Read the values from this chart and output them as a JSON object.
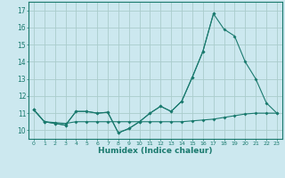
{
  "x": [
    0,
    1,
    2,
    3,
    4,
    5,
    6,
    7,
    8,
    9,
    10,
    11,
    12,
    13,
    14,
    15,
    16,
    17,
    18,
    19,
    20,
    21,
    22,
    23
  ],
  "line1_y": [
    11.2,
    10.5,
    10.4,
    10.3,
    11.1,
    11.1,
    11.0,
    11.05,
    9.85,
    10.1,
    10.5,
    11.0,
    11.4,
    11.1,
    11.7,
    13.1,
    14.6,
    16.8,
    null,
    null,
    null,
    null,
    null,
    null
  ],
  "line2_y": [
    11.2,
    10.5,
    10.4,
    10.3,
    11.1,
    11.1,
    11.0,
    11.05,
    9.85,
    10.1,
    10.5,
    11.0,
    11.4,
    11.1,
    11.7,
    13.1,
    14.6,
    16.8,
    15.9,
    15.5,
    14.0,
    13.0,
    11.6,
    11.0
  ],
  "line3_y": [
    11.2,
    10.5,
    10.45,
    10.4,
    10.5,
    10.5,
    10.5,
    10.5,
    10.5,
    10.5,
    10.5,
    10.5,
    10.5,
    10.5,
    10.5,
    10.55,
    10.6,
    10.65,
    10.75,
    10.85,
    10.95,
    11.0,
    11.0,
    11.0
  ],
  "line_color": "#1a7a6e",
  "bg_color": "#cce8ef",
  "grid_color": "#aacccc",
  "xlabel": "Humidex (Indice chaleur)",
  "ylim": [
    9.5,
    17.5
  ],
  "xlim": [
    -0.5,
    23.5
  ],
  "yticks": [
    10,
    11,
    12,
    13,
    14,
    15,
    16,
    17
  ],
  "xticks": [
    0,
    1,
    2,
    3,
    4,
    5,
    6,
    7,
    8,
    9,
    10,
    11,
    12,
    13,
    14,
    15,
    16,
    17,
    18,
    19,
    20,
    21,
    22,
    23
  ]
}
